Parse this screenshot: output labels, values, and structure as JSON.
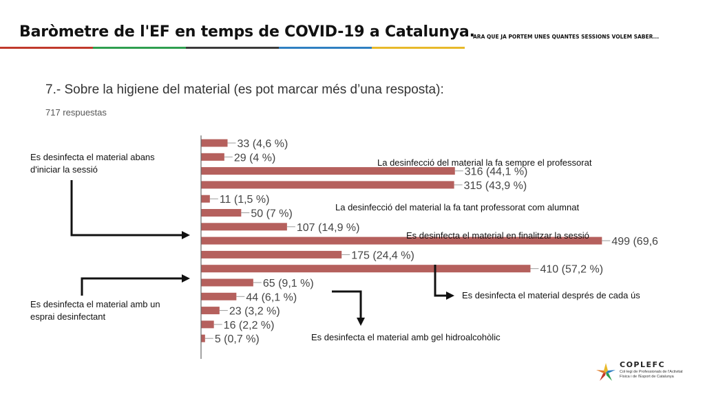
{
  "header": {
    "title": "Baròmetre de l'EF en temps de COVID-19 a Catalunya.",
    "subtitle": "ARA QUE JA PORTEM UNES QUANTES SESSIONS VOLEM SABER...",
    "stripe_colors": [
      "#c0392b",
      "#2e9e4f",
      "#3a3a3a",
      "#2f7fc1",
      "#e8b92a"
    ]
  },
  "question": {
    "title": "7.- Sobre la higiene del material (es pot marcar més d’una resposta):",
    "responses": "717 respuestas"
  },
  "chart_data": {
    "type": "bar",
    "orientation": "horizontal",
    "bar_color": "#b5605d",
    "values": [
      33,
      29,
      316,
      315,
      11,
      50,
      107,
      499,
      175,
      410,
      65,
      44,
      23,
      16,
      5
    ],
    "labels": [
      "33 (4,6 %)",
      "29 (4 %)",
      "316 (44,1 %)",
      "315 (43,9 %)",
      "11 (1,5 %)",
      "50 (7 %)",
      "107 (14,9 %)",
      "499 (69,6",
      "175 (24,4 %)",
      "410 (57,2 %)",
      "65 (9,1 %)",
      "44 (6,1 %)",
      "23 (3,2 %)",
      "16 (2,2 %)",
      "5 (0,7 %)"
    ],
    "xlim": [
      0,
      520
    ]
  },
  "annotations": {
    "abans": "Es desinfecta el material abans\nd'iniciar la sessió",
    "professorat": "La desinfecció del material la fa sempre el professorat",
    "tant": "La desinfecció del material la fa tant professorat com alumnat",
    "finalitzar": "Es desinfecta el material en finalitzar la sessió",
    "despres": "Es desinfecta el material després de cada ús",
    "esprai": "Es desinfecta el material amb un\nesprai desinfectant",
    "gel": "Es desinfecta el material amb gel hidroalcohòlic"
  },
  "logo": {
    "name": "COPLEFC",
    "subtitle": "Col·legi de Professionals de l'Activitat Física i de l'Esport de Catalunya"
  }
}
